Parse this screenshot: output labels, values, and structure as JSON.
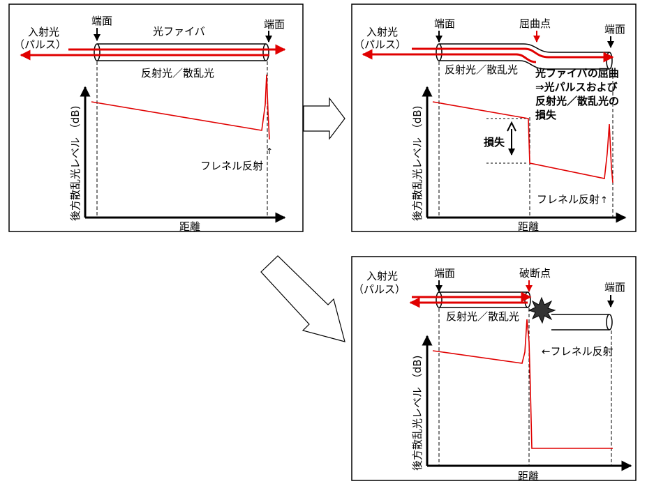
{
  "colors": {
    "signal": "#e00000",
    "line": "#000000",
    "burst": "#333333"
  },
  "panel_a": {
    "incident_line1": "入射光",
    "incident_line2": "（パルス）",
    "end_face_left": "端面",
    "end_face_right": "端面",
    "fiber": "光ファイバ",
    "backscatter": "反射光／散乱光",
    "y_axis": "後方散乱光レベル （dB)",
    "x_axis": "距離",
    "fresnel": "フレネル反射"
  },
  "panel_b": {
    "incident_line1": "入射光",
    "incident_line2": "（パルス）",
    "end_face_left": "端面",
    "bend_point": "屈曲点",
    "end_face_right": "端面",
    "backscatter": "反射光／散乱光",
    "bend_note_1": "光ファイバの屈曲",
    "bend_note_2": "⇒光パルスおよび",
    "bend_note_3": "反射光／散乱光の",
    "bend_note_4": "損失",
    "loss": "損失",
    "y_axis": "後方散乱光レベル （dB)",
    "x_axis": "距離",
    "fresnel": "フレネル反射"
  },
  "panel_c": {
    "incident_line1": "入射光",
    "incident_line2": "（パルス）",
    "end_face_left": "端面",
    "break_point": "破断点",
    "end_face_right": "端面",
    "backscatter": "反射光／散乱光",
    "fresnel": "←フレネル反射",
    "y_axis": "後方散乱光レベル （dB)",
    "x_axis": "距離"
  }
}
